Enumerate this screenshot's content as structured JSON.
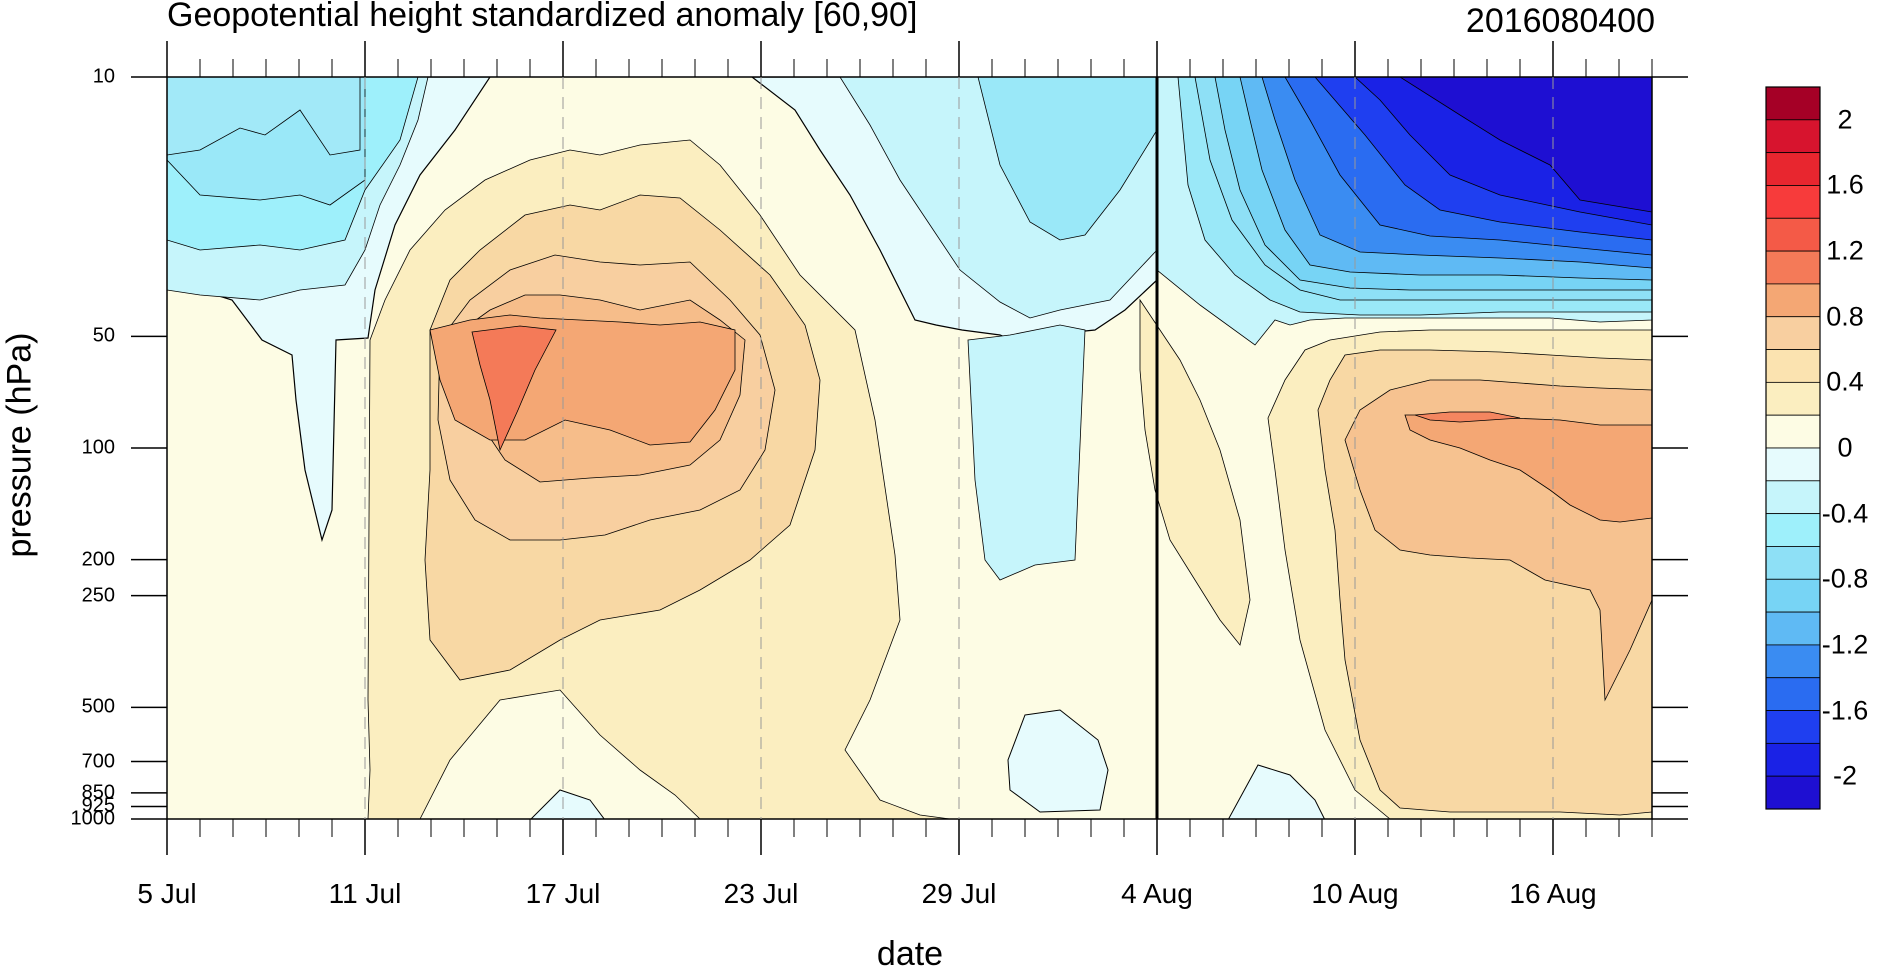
{
  "chart_data": {
    "type": "heatmap",
    "subtype": "filled-contour time-pressure cross section",
    "title": "Geopotential height standardized anomaly [60,90]",
    "title_right": "2016080400",
    "xlabel": "date",
    "ylabel": "pressure (hPa)",
    "x_tick_labels": [
      "5 Jul",
      "11 Jul",
      "17 Jul",
      "23 Jul",
      "29 Jul",
      "4 Aug",
      "10 Aug",
      "16 Aug"
    ],
    "y_tick_labels": [
      "10",
      "50",
      "100",
      "200",
      "250",
      "500",
      "700",
      "850",
      "925",
      "1000"
    ],
    "y_scale": "log",
    "y_range_hPa": [
      1000,
      10
    ],
    "x_range": [
      "2016-07-05",
      "2016-08-19"
    ],
    "marked_date": "2016-08-04",
    "contour_levels": [
      -2.2,
      -2.0,
      -1.8,
      -1.6,
      -1.4,
      -1.2,
      -1.0,
      -0.8,
      -0.6,
      -0.4,
      -0.2,
      0.0,
      0.2,
      0.4,
      0.6,
      0.8,
      1.0,
      1.2,
      1.4,
      1.6,
      1.8,
      2.0,
      2.2
    ],
    "colorbar_labels": [
      "2",
      "1.6",
      "1.2",
      "0.8",
      "0.4",
      "0",
      "-0.4",
      "-0.8",
      "-1.2",
      "-1.6",
      "-2"
    ],
    "colors": {
      "neg_max": "#1e0fd2",
      "neg_strong": "#1f3ff0",
      "neg_mid": "#3a8cf2",
      "neg_weak": "#77d4f5",
      "neg_faint": "#c6f5fb",
      "zero_neg": "#e6fbfd",
      "zero_pos": "#fdfce4",
      "pos_faint": "#fbeec0",
      "pos_weak": "#f8d8a4",
      "pos_mid": "#f4b07e",
      "pos_strong": "#f47a58",
      "pos_max": "#a50026"
    },
    "grid": "vertical dashed lines at labeled dates"
  }
}
